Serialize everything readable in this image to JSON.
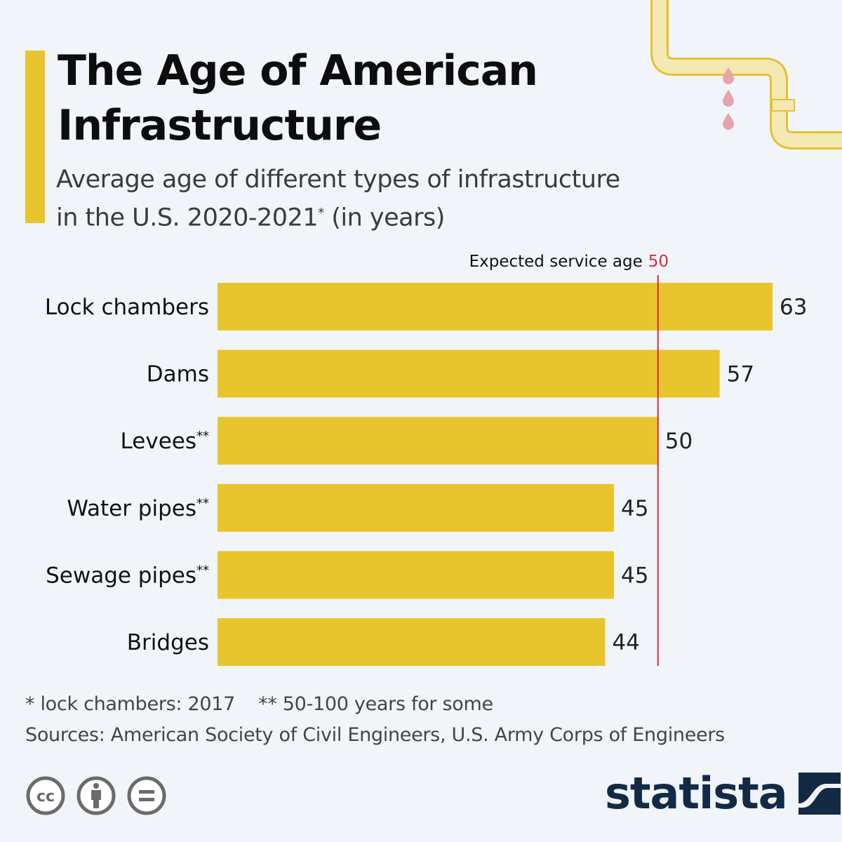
{
  "header": {
    "title_line1": "The Age of American",
    "title_line2": "Infrastructure",
    "subtitle_line1": "Average age of different types of infrastructure",
    "subtitle_line2": "in the U.S. 2020-2021",
    "subtitle_sup": "*",
    "subtitle_tail": " (in years)"
  },
  "colors": {
    "bar": "#e8c52c",
    "reference_line": "#d62d3a",
    "background": "#f1f5f9",
    "brand": "#132a44"
  },
  "chart_data": {
    "type": "bar",
    "orientation": "horizontal",
    "title": "The Age of American Infrastructure",
    "subtitle": "Average age of different types of infrastructure in the U.S. 2020-2021* (in years)",
    "categories": [
      "Lock chambers",
      "Dams",
      "Levees**",
      "Water pipes**",
      "Sewage pipes**",
      "Bridges"
    ],
    "values": [
      63,
      57,
      50,
      45,
      45,
      44
    ],
    "data_labels": [
      "63",
      "57",
      "50",
      "45",
      "45",
      "44"
    ],
    "xlim": [
      0,
      63
    ],
    "xlabel": "",
    "ylabel": "",
    "grid": false,
    "reference_line": {
      "value": 50,
      "label": "Expected service age",
      "value_label": "50"
    }
  },
  "footer": {
    "footnote_1": "* lock chambers: 2017",
    "footnote_2": "** 50-100 years for some",
    "sources": "Sources: American Society of Civil Engineers, U.S. Army Corps of Engineers",
    "license_icons": [
      "cc-icon",
      "attribution-icon",
      "no-derivatives-icon"
    ],
    "brand": "statista"
  }
}
